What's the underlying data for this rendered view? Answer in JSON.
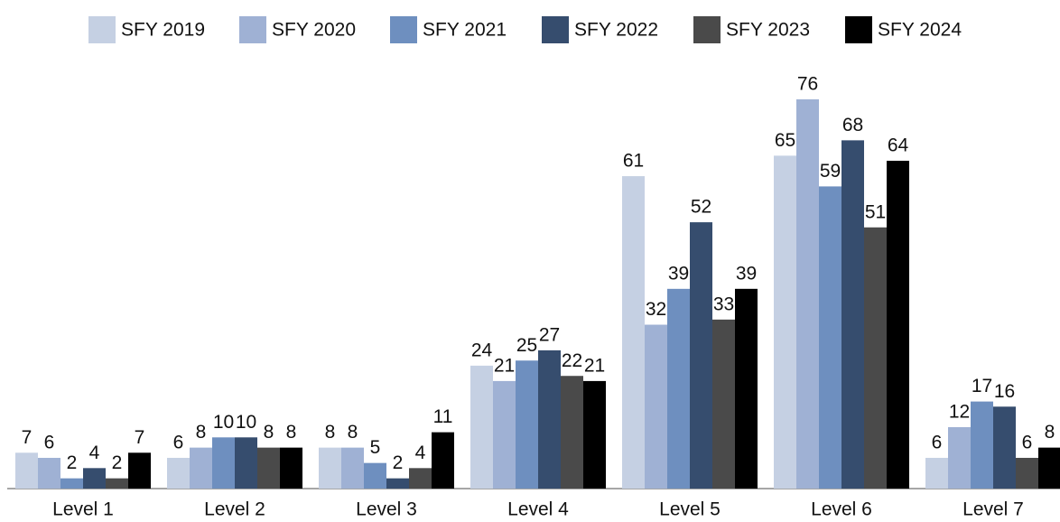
{
  "chart_data": {
    "type": "bar",
    "categories": [
      "Level 1",
      "Level 2",
      "Level 3",
      "Level 4",
      "Level 5",
      "Level 6",
      "Level 7"
    ],
    "series": [
      {
        "name": "SFY 2019",
        "color": "#c5d0e3",
        "values": [
          7,
          6,
          8,
          24,
          61,
          65,
          6
        ]
      },
      {
        "name": "SFY 2020",
        "color": "#9fb1d4",
        "values": [
          6,
          8,
          8,
          21,
          32,
          76,
          12
        ]
      },
      {
        "name": "SFY 2021",
        "color": "#6e8fbf",
        "values": [
          2,
          10,
          5,
          25,
          39,
          59,
          17
        ]
      },
      {
        "name": "SFY 2022",
        "color": "#364d6e",
        "values": [
          4,
          10,
          2,
          27,
          52,
          68,
          16
        ]
      },
      {
        "name": "SFY 2023",
        "color": "#4a4a4a",
        "values": [
          2,
          8,
          4,
          22,
          33,
          51,
          6
        ]
      },
      {
        "name": "SFY 2024",
        "color": "#000000",
        "values": [
          7,
          8,
          11,
          21,
          39,
          64,
          8
        ]
      }
    ],
    "legend": "top"
  }
}
